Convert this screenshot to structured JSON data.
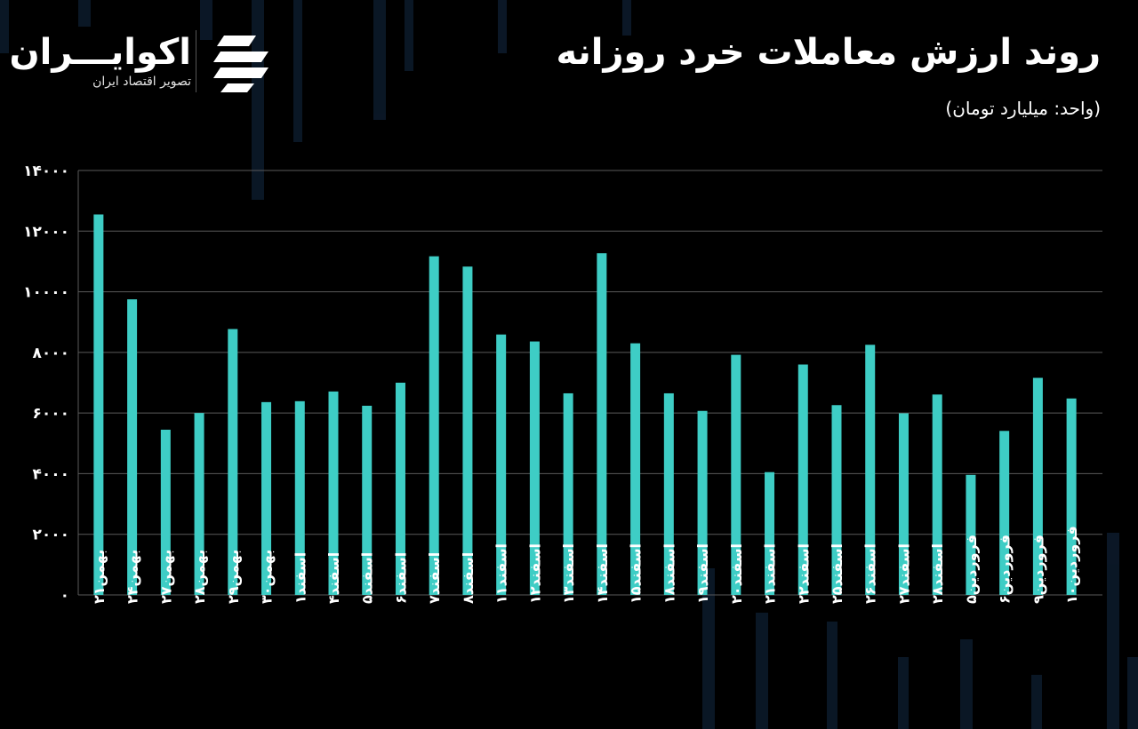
{
  "brand": {
    "name": "اکوایـــران",
    "tagline": "تصویر اقتصاد ایران"
  },
  "colors": {
    "background": "#000000",
    "bar": "#3ecdc5",
    "grid": "#5a5a5a"
  },
  "chart_data": {
    "type": "bar",
    "title": "روند ارزش معاملات خرد روزانه",
    "subtitle": "(واحد: میلیارد تومان)",
    "xlabel": "",
    "ylabel": "",
    "ylim": [
      0,
      14000
    ],
    "yticks": [
      0,
      2000,
      4000,
      6000,
      8000,
      10000,
      12000,
      14000
    ],
    "ytick_labels": [
      "۰",
      "۲۰۰۰",
      "۴۰۰۰",
      "۶۰۰۰",
      "۸۰۰۰",
      "۱۰۰۰۰",
      "۱۲۰۰۰",
      "۱۴۰۰۰"
    ],
    "grid": true,
    "categories": [
      "بهمن۲۱",
      "بهمن۲۴",
      "بهمن۲۷",
      "بهمن۲۸",
      "بهمن۲۹",
      "بهمن۳۰",
      "اسفند۱",
      "اسفند۴",
      "اسفند۵",
      "اسفند۶",
      "اسفند۷",
      "اسفند۸",
      "اسفند۱۱",
      "اسفند۱۲",
      "اسفند۱۳",
      "اسفند۱۴",
      "اسفند۱۵",
      "اسفند۱۸",
      "اسفند۱۹",
      "اسفند۲۰",
      "اسفند۲۱",
      "اسفند۲۲",
      "اسفند۲۵",
      "اسفند۲۶",
      "اسفند۲۷",
      "اسفند۲۸",
      "فروردین۵",
      "فروردین۶",
      "فروردین۹",
      "فروردین۱۰"
    ],
    "values": [
      12550,
      9750,
      5450,
      6000,
      8770,
      6360,
      6390,
      6710,
      6240,
      7000,
      11170,
      10830,
      8590,
      8360,
      6650,
      11270,
      8300,
      6650,
      6070,
      7920,
      4050,
      7600,
      6260,
      8250,
      5990,
      6610,
      3960,
      5410,
      7160,
      6480
    ]
  }
}
